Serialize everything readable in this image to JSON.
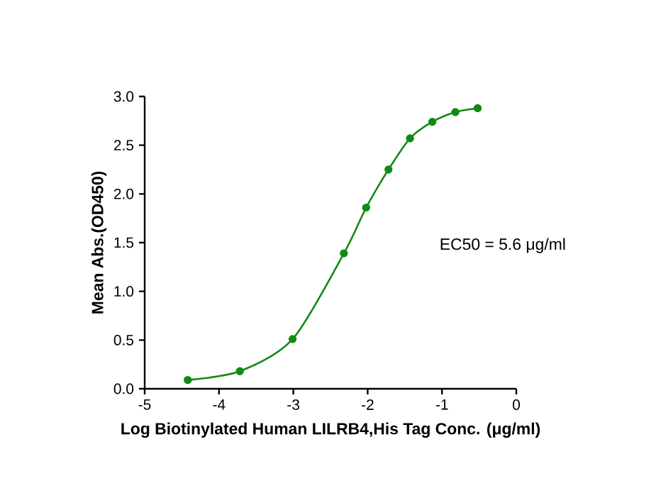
{
  "chart_data": {
    "type": "line",
    "xlabel": "Log Biotinylated Human LILRB4,His Tag Conc. (μg/ml)",
    "ylabel": "Mean Abs.(OD450)",
    "xlim": [
      -5,
      0
    ],
    "ylim": [
      0,
      3.0
    ],
    "xticks": [
      -5,
      -4,
      -3,
      -2,
      -1,
      0
    ],
    "yticks": [
      {
        "value": 0,
        "label": "0.0"
      },
      {
        "value": 0.5,
        "label": "0.5"
      },
      {
        "value": 1,
        "label": "1.0"
      },
      {
        "value": 1.5,
        "label": "1.5"
      },
      {
        "value": 2,
        "label": "2.0"
      },
      {
        "value": 2.5,
        "label": "2.5"
      },
      {
        "value": 3,
        "label": "3.0"
      }
    ],
    "marker": "circle",
    "annotations": [
      "EC50 = 5.6 μg/ml"
    ],
    "series": [
      {
        "color": "#138a13",
        "x": [
          -4.42,
          -3.72,
          -3.01,
          -2.32,
          -2.02,
          -1.72,
          -1.43,
          -1.13,
          -0.82,
          -0.52
        ],
        "values": [
          0.09,
          0.18,
          0.51,
          1.39,
          1.86,
          2.25,
          2.57,
          2.74,
          2.84,
          2.88
        ]
      }
    ]
  }
}
